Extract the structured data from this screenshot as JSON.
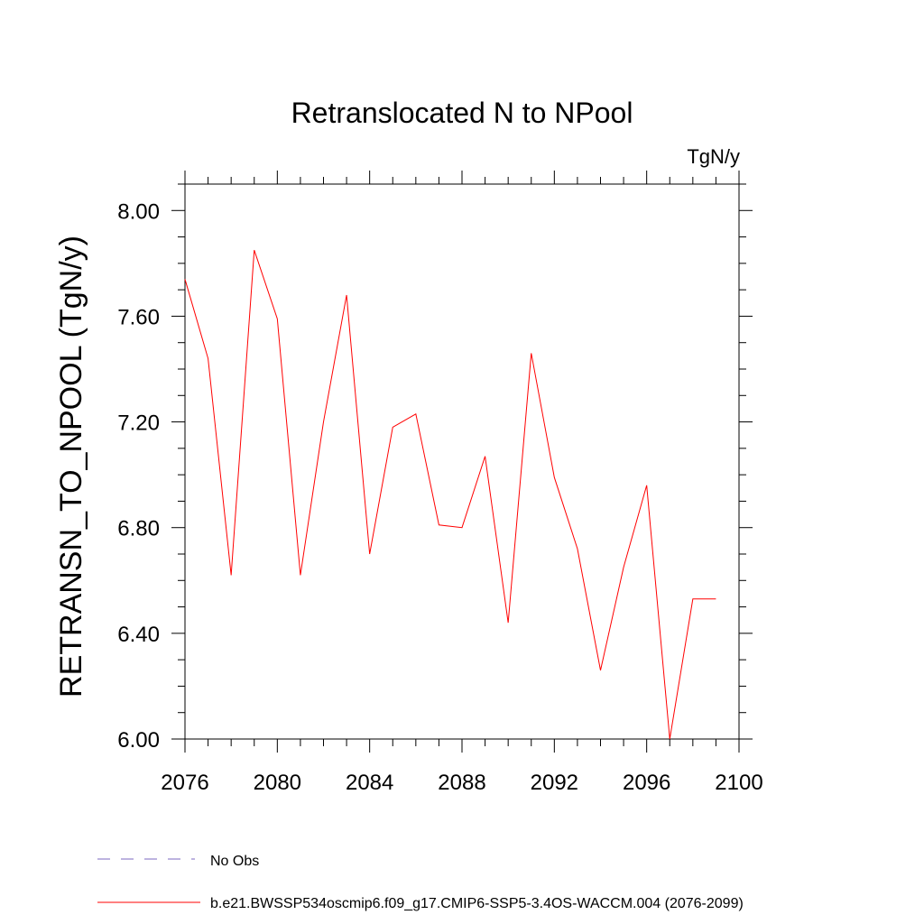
{
  "chart_data": {
    "type": "line",
    "title": "Retranslocated N to NPool",
    "units": "TgN/y",
    "y_label": "RETRANSN_TO_NPOOL  (TgN/y)",
    "x": [
      2076,
      2077,
      2078,
      2079,
      2080,
      2081,
      2082,
      2083,
      2084,
      2085,
      2086,
      2087,
      2088,
      2089,
      2090,
      2091,
      2092,
      2093,
      2094,
      2095,
      2096,
      2097,
      2098,
      2099
    ],
    "series": [
      {
        "name": "b.e21.BWSSP534oscmip6.f09_g17.CMIP6-SSP5-3.4OS-WACCM.004 (2076-2099)",
        "color": "#ff0000",
        "values": [
          7.74,
          7.44,
          6.62,
          7.85,
          7.59,
          6.62,
          7.2,
          7.68,
          6.7,
          7.18,
          7.23,
          6.81,
          6.8,
          7.07,
          6.44,
          7.46,
          6.99,
          6.72,
          6.26,
          6.65,
          6.96,
          6.0,
          6.53,
          6.53
        ]
      }
    ],
    "reference_legend": {
      "name": "No Obs",
      "color": "#7b68c0",
      "dashed": true
    },
    "xlim": [
      2076,
      2100
    ],
    "xticks": [
      2076,
      2080,
      2084,
      2088,
      2092,
      2096,
      2100
    ],
    "x_minor_ticks": [
      2077,
      2078,
      2079,
      2081,
      2082,
      2083,
      2085,
      2086,
      2087,
      2089,
      2090,
      2091,
      2093,
      2094,
      2095,
      2097,
      2098,
      2099
    ],
    "ylim": [
      6.0,
      8.1
    ],
    "yticks": [
      {
        "value": 6.0,
        "label": "6.00"
      },
      {
        "value": 6.4,
        "label": "6.40"
      },
      {
        "value": 6.8,
        "label": "6.80"
      },
      {
        "value": 7.2,
        "label": "7.20"
      },
      {
        "value": 7.6,
        "label": "7.60"
      },
      {
        "value": 8.0,
        "label": "8.00"
      }
    ],
    "y_minor_ticks": [
      6.1,
      6.2,
      6.3,
      6.5,
      6.6,
      6.7,
      6.9,
      7.0,
      7.1,
      7.3,
      7.4,
      7.5,
      7.7,
      7.8,
      7.9,
      8.1
    ]
  }
}
